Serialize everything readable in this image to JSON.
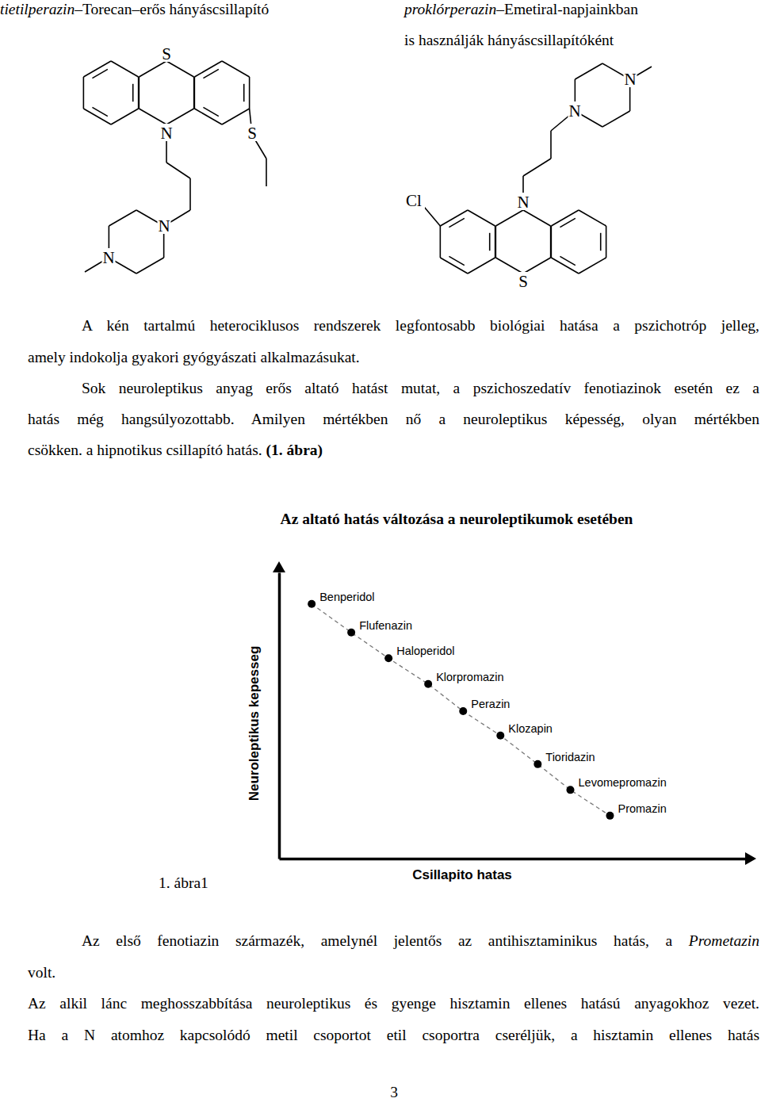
{
  "captions": [
    {
      "lines": [
        [
          {
            "text": "tietilperazin",
            "italic": true
          },
          {
            "text": "–Torecan–erős hányáscsillapító"
          }
        ]
      ]
    },
    {
      "lines": [
        [
          {
            "text": "proklórperazin",
            "italic": true
          },
          {
            "text": "–Emetiral-napjainkban"
          }
        ],
        [
          {
            "text": "is használják hányáscsillapítóként"
          }
        ]
      ]
    }
  ],
  "structures": [
    {
      "atoms": [
        "S",
        "N",
        "S",
        "N",
        "N"
      ]
    },
    {
      "atoms": [
        "N",
        "N",
        "Cl",
        "N",
        "S"
      ]
    }
  ],
  "paragraphs": [
    {
      "lines": [
        [
          {
            "text": "A kén tartalmú heterociklusos rendszerek legfontosabb biológiai hatása a pszichotróp jelleg,"
          }
        ],
        [
          {
            "text": "amely indokolja gyakori gyógyászati alkalmazásukat."
          }
        ]
      ]
    },
    {
      "lines": [
        [
          {
            "text": "Sok neuroleptikus anyag erős altató hatást mutat, a pszichoszedatív fenotiazinok esetén ez a"
          }
        ],
        [
          {
            "text": "hatás még hangsúlyozottabb. Amilyen mértékben nő a neuroleptikus képesség, olyan mértékben"
          }
        ],
        [
          {
            "text": "csökken. a hipnotikus csillapító hatás. "
          },
          {
            "text": "(1. ábra)",
            "bold": true
          }
        ]
      ]
    },
    {
      "lines": [
        [
          {
            "text": "Az első fenotiazin származék, amelynél jelentős az antihisztaminikus hatás, a "
          },
          {
            "text": "Prometazin",
            "italic": true
          }
        ],
        [
          {
            "text": "volt."
          }
        ]
      ]
    },
    {
      "lines": [
        [
          {
            "text": "Az alkil lánc meghosszabbítása neuroleptikus és gyenge hisztamin ellenes hatású anyagokhoz vezet."
          }
        ],
        [
          {
            "text": "Ha a N atomhoz kapcsolódó metil csoportot etil csoportra cseréljük, a hisztamin ellenes hatás"
          }
        ]
      ]
    }
  ],
  "figure_title": "Az altató hatás változása a neuroleptikumok esetében",
  "chart_data": {
    "type": "scatter",
    "x_label": "Csillapito hatas",
    "y_label": "Neuroleptikus kepesseg",
    "labels": [
      "Benperidol",
      "Flufenazin",
      "Haloperidol",
      "Klorpromazin",
      "Perazin",
      "Klozapin",
      "Tioridazin",
      "Levomepromazin",
      "Promazin"
    ],
    "x": [
      7,
      15.5,
      23.5,
      32,
      39.5,
      47.5,
      55.5,
      62.5,
      71
    ],
    "values": [
      89,
      79,
      70,
      61,
      51.5,
      43,
      33,
      24,
      15
    ],
    "xlim": [
      0,
      100
    ],
    "ylim": [
      0,
      100
    ],
    "xticks": [],
    "yticks": [],
    "tick_labels": false,
    "grid": false,
    "color": "#000000",
    "marker": "circle",
    "line_style": "dashed"
  },
  "figure_caption": "1. ábra1",
  "page_number": 3
}
